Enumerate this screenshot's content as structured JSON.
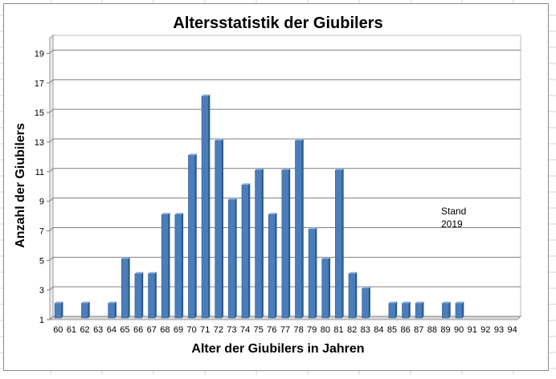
{
  "chart_data": {
    "type": "bar",
    "title": "Altersstatistik  der Giubilers",
    "xlabel": "Alter der Giubilers in Jahren",
    "ylabel": "Anzahl der Giubilers",
    "annotation": [
      "Stand",
      "2019"
    ],
    "categories": [
      "60",
      "61",
      "62",
      "63",
      "64",
      "65",
      "66",
      "67",
      "68",
      "69",
      "70",
      "71",
      "72",
      "73",
      "74",
      "75",
      "76",
      "77",
      "78",
      "79",
      "80",
      "81",
      "82",
      "83",
      "84",
      "85",
      "86",
      "87",
      "88",
      "89",
      "90",
      "91",
      "92",
      "93",
      "94"
    ],
    "values": [
      2,
      0,
      2,
      0,
      2,
      5,
      4,
      4,
      8,
      8,
      12,
      16,
      13,
      9,
      10,
      11,
      8,
      11,
      13,
      7,
      5,
      11,
      4,
      3,
      0,
      2,
      2,
      2,
      0,
      2,
      2,
      0,
      0,
      1,
      0
    ],
    "yticks": [
      1,
      3,
      5,
      7,
      9,
      11,
      13,
      15,
      17,
      19
    ],
    "ylim": [
      1,
      20
    ],
    "grid": true,
    "legend": "none",
    "bar_color": "#4a7ebb"
  }
}
